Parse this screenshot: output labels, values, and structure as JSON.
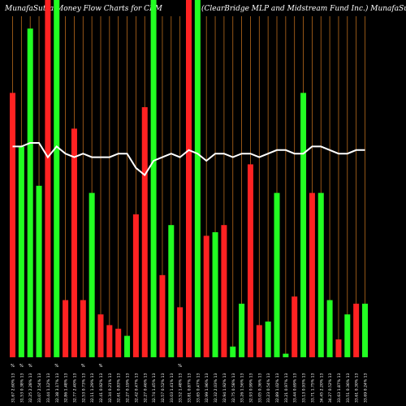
{
  "header": {
    "left_title": "MunafaSutra Money Flow Charts for CEM",
    "right_title": "(ClearBridge MLP and Midstream Fund Inc.) MunafaSutra.com"
  },
  "colors": {
    "background": "#000000",
    "up": "#22ff22",
    "down": "#ff2222",
    "grid": "#b86a1c",
    "line": "#ffffff",
    "text": "#ffffff"
  },
  "chart_data": {
    "type": "bar",
    "title": "MunafaSutra Money Flow Charts for CEM",
    "subtitle": "(ClearBridge MLP and Midstream Fund Inc.) MunafaSutra.com",
    "y_range": [
      0,
      1
    ],
    "grid": "vertical",
    "categories": [
      "31.67 2.60% 13",
      "31.53 0.38% 13",
      "32.25 2.28% 13",
      "33.07 2.54% 13",
      "33.44 1.12% 13",
      "32.38 3.17% 13",
      "32.86 1.48% 13",
      "32.77 2.40% 13",
      "32.53 0.73% 13",
      "32.11 1.29% 13",
      "32.41 0.92% 13",
      "32.34 0.21% 13",
      "32.61 0.83% 13",
      "32.27 0.19% 13",
      "32.42 0.47% 13",
      "32.27 0.46% 13",
      "32.74 1.45% 13",
      "32.57 0.52% 13",
      "33.03 1.41% 13",
      "33.52 1.48% 13",
      "33.81 0.87% 13",
      "33.65 0.47% 13",
      "32.99 1.96% 13",
      "32.32 2.03% 13",
      "32.94 1.92% 13",
      "32.75 0.58% 13",
      "33.26 1.56% 13",
      "32.93 0.99% 13",
      "33.05 0.36% 13",
      "33.23 0.54% 13",
      "32.89 1.02% 13",
      "33.21 0.97% 13",
      "33.44 0.69% 13",
      "33.13 0.93% 13",
      "33.71 1.75% 13",
      "34.45 2.20% 13",
      "34.27 0.52% 13",
      "33.63 1.87% 13",
      "33.51 0.36% 13",
      "33.61 0.30% 13",
      "33.69 0.24% 13"
    ],
    "series": [
      {
        "direction": [
          "down",
          "up",
          "up",
          "up",
          "down",
          "up",
          "down",
          "down",
          "down",
          "up",
          "down",
          "down",
          "down",
          "up",
          "down",
          "down",
          "up",
          "down",
          "up",
          "down",
          "down",
          "up",
          "down",
          "up",
          "down",
          "up",
          "up",
          "down",
          "down",
          "up",
          "up",
          "up",
          "down",
          "up",
          "down",
          "up",
          "up",
          "down",
          "up",
          "down",
          "up"
        ],
        "values": [
          0.74,
          0.59,
          0.92,
          0.48,
          1.0,
          1.0,
          0.16,
          0.64,
          0.16,
          0.46,
          0.12,
          0.09,
          0.08,
          0.06,
          0.4,
          0.7,
          1.0,
          0.23,
          0.37,
          0.14,
          1.0,
          1.0,
          0.34,
          0.35,
          0.37,
          0.03,
          0.15,
          0.54,
          0.09,
          0.1,
          0.46,
          0.01,
          0.17,
          0.74,
          0.46,
          0.46,
          0.16,
          0.05,
          0.12,
          0.15,
          0.15
        ]
      },
      {
        "type": "line",
        "values": [
          0.59,
          0.59,
          0.6,
          0.6,
          0.56,
          0.59,
          0.57,
          0.56,
          0.57,
          0.56,
          0.56,
          0.56,
          0.57,
          0.57,
          0.53,
          0.51,
          0.55,
          0.56,
          0.57,
          0.56,
          0.58,
          0.57,
          0.55,
          0.57,
          0.57,
          0.56,
          0.57,
          0.57,
          0.56,
          0.57,
          0.58,
          0.58,
          0.57,
          0.57,
          0.59,
          0.59,
          0.58,
          0.57,
          0.57,
          0.58,
          0.58
        ]
      }
    ],
    "x_tick_symbols": [
      "",
      "",
      "",
      "",
      "",
      "",
      "",
      "",
      "",
      "",
      "",
      "",
      "",
      "",
      "",
      "",
      "",
      "",
      "",
      "",
      "",
      "",
      "",
      "",
      "",
      "",
      "",
      "",
      "",
      "",
      "",
      "",
      "",
      "",
      "",
      "",
      "",
      "",
      "",
      "",
      ""
    ],
    "below_bar_marks": [
      "%",
      "%",
      "%",
      "",
      "",
      "%",
      "",
      "",
      "%",
      "",
      "%",
      "",
      "",
      "",
      "",
      "",
      "",
      "",
      "",
      "%",
      "",
      "",
      "",
      "",
      "",
      "",
      "",
      "",
      "",
      "",
      "",
      "",
      "",
      "",
      "",
      "",
      "",
      "",
      "",
      "",
      ""
    ]
  }
}
